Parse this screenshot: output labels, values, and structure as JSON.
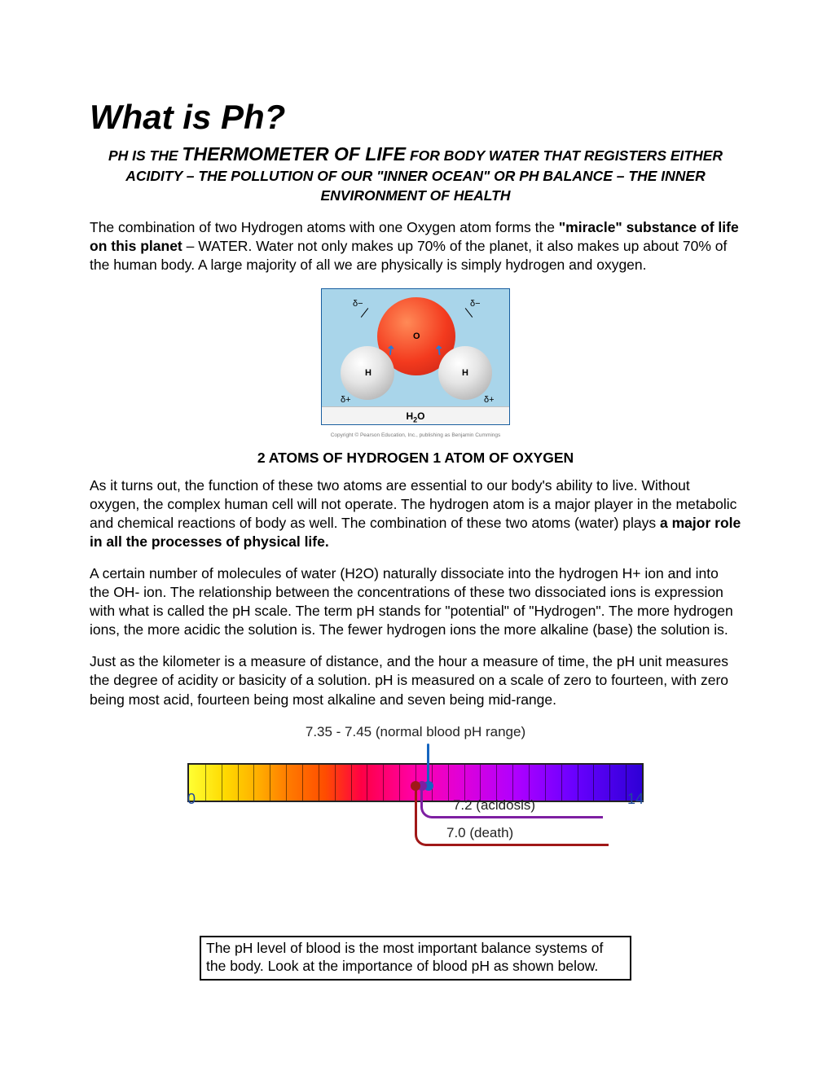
{
  "title": "What is Ph?",
  "subtitle_pre": "PH IS THE ",
  "subtitle_big": "THERMOMETER OF LIFE",
  "subtitle_post": " FOR BODY WATER THAT REGISTERS EITHER ACIDITY – THE POLLUTION OF OUR \"INNER OCEAN\" OR PH BALANCE – THE INNER ENVIRONMENT OF HEALTH",
  "p1_pre": "The combination of two Hydrogen atoms with one Oxygen atom forms the ",
  "p1_bold": "\"miracle\" substance of life on this planet",
  "p1_post": " – WATER. Water not only makes up 70% of the planet, it also makes up about 70% of the human body. A large majority of all we are physically is simply hydrogen and oxygen.",
  "molecule": {
    "bg": "#a9d5ea",
    "border": "#1a5fa0",
    "o_label": "O",
    "h_label": "H",
    "delta_minus": "δ−",
    "delta_plus": "δ+",
    "formula_h": "H",
    "formula_2": "2",
    "formula_o": "O",
    "copyright": "Copyright © Pearson Education, Inc., publishing as Benjamin Cummings"
  },
  "section_head": "2 ATOMS OF HYDROGEN 1 ATOM OF OXYGEN",
  "p2_pre": "As it turns out, the function of these two atoms are essential to our body's ability to live. Without oxygen, the complex human cell will not operate. The hydrogen atom is a major player in the metabolic and chemical reactions of body as well. The combination of these two atoms (water) plays ",
  "p2_bold": "a major role in all the processes of physical life.",
  "p3": "A certain number of molecules of water (H2O) naturally dissociate into the hydrogen H+ ion and into the OH- ion. The relationship between the concentrations of these two dissociated ions is expression with what is called the pH scale. The term pH stands for \"potential\" of \"Hydrogen\". The more hydrogen ions, the more acidic the solution is. The fewer hydrogen ions the more alkaline (base) the solution is.",
  "p4": "Just as the kilometer is a measure of distance, and the hour a measure of time, the pH unit measures the degree of acidity or basicity of a solution. pH is measured on a scale of zero to fourteen, with zero being most acid, fourteen being most alkaline and seven being mid-range.",
  "ph_chart": {
    "title": "7.35 - 7.45 (normal blood pH range)",
    "min_label": "0",
    "max_label": "14",
    "min": 0,
    "max": 14,
    "ticks": 28,
    "gradient_stops": [
      "#ffff33",
      "#ffd900",
      "#ffb000",
      "#ff7a00",
      "#ff4d00",
      "#ff0044",
      "#ff00aa",
      "#e000d8",
      "#b000ff",
      "#6a00ff",
      "#2e00d6"
    ],
    "indicators": [
      {
        "value": 7.4,
        "color": "#1565c0",
        "dir": "up",
        "drop": 28,
        "run": 0,
        "label": ""
      },
      {
        "value": 7.2,
        "color": "#7e1fa2",
        "dir": "down",
        "drop": 38,
        "run": 210,
        "label": "7.2 (acidosis)"
      },
      {
        "value": 7.0,
        "color": "#a01818",
        "dir": "down",
        "drop": 72,
        "run": 225,
        "label": "7.0 (death)"
      }
    ]
  },
  "note_box": "The pH level of blood is the most important balance systems of the body. Look at the importance of blood pH as shown below."
}
